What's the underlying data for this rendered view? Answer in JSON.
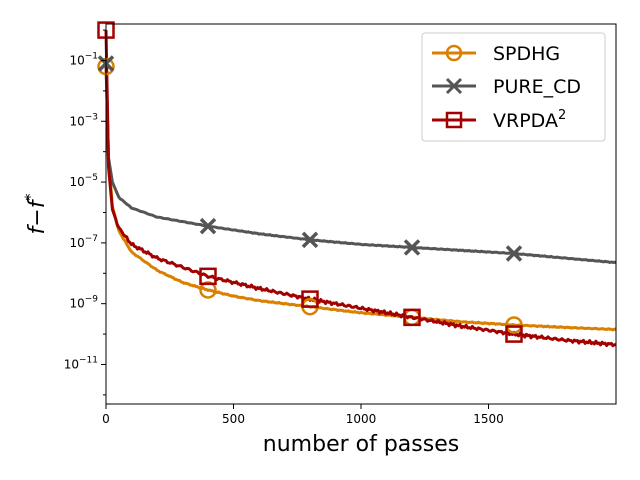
{
  "chart_data": {
    "type": "line",
    "title": "",
    "xlabel": "number of passes",
    "ylabel_main": "f",
    "ylabel_minus": "−",
    "ylabel_sup_base": "f",
    "ylabel_sup": "*",
    "xlim": [
      0,
      2000
    ],
    "ylim_log10": [
      -12.3,
      0.2
    ],
    "x_ticks": [
      0,
      500,
      1000,
      1500
    ],
    "x_tick_labels": [
      "0",
      "500",
      "1000",
      "1500"
    ],
    "y_ticks_log10": [
      -1,
      -3,
      -5,
      -7,
      -9,
      -11
    ],
    "y_tick_labels": [
      {
        "base": "10",
        "exp": "−1"
      },
      {
        "base": "10",
        "exp": "−3"
      },
      {
        "base": "10",
        "exp": "−5"
      },
      {
        "base": "10",
        "exp": "−7"
      },
      {
        "base": "10",
        "exp": "−9"
      },
      {
        "base": "10",
        "exp": "−11"
      }
    ],
    "grid": false,
    "legend_position": "top-right",
    "series": [
      {
        "name": "SPDHG",
        "legend_label": "SPDHG",
        "color": "#d98000",
        "marker": "circle",
        "x": [
          0,
          10,
          25,
          50,
          100,
          200,
          300,
          400,
          500,
          600,
          800,
          1000,
          1200,
          1400,
          1600,
          1800,
          2000
        ],
        "log10_y": [
          -1.2,
          -4.2,
          -5.8,
          -6.6,
          -7.3,
          -7.9,
          -8.3,
          -8.55,
          -8.75,
          -8.9,
          -9.1,
          -9.3,
          -9.45,
          -9.6,
          -9.7,
          -9.78,
          -9.85
        ],
        "marker_x": [
          0,
          400,
          800,
          1200,
          1600
        ],
        "marker_log10_y": [
          -1.2,
          -8.55,
          -9.1,
          -9.45,
          -9.7
        ]
      },
      {
        "name": "PURE_CD",
        "legend_label": "PURE_CD",
        "color": "#555555",
        "marker": "x",
        "x": [
          0,
          10,
          25,
          50,
          100,
          200,
          300,
          400,
          600,
          800,
          1000,
          1200,
          1400,
          1600,
          1800,
          2000
        ],
        "log10_y": [
          -1.1,
          -4.2,
          -5.0,
          -5.5,
          -5.85,
          -6.15,
          -6.3,
          -6.45,
          -6.7,
          -6.9,
          -7.05,
          -7.15,
          -7.25,
          -7.35,
          -7.5,
          -7.65
        ],
        "marker_x": [
          0,
          400,
          800,
          1200,
          1600
        ],
        "marker_log10_y": [
          -1.1,
          -6.45,
          -6.9,
          -7.15,
          -7.35
        ]
      },
      {
        "name": "VRPDA2",
        "legend_label": "VRPDA",
        "legend_sup": "2",
        "color": "#a30000",
        "marker": "square",
        "x": [
          0,
          10,
          25,
          50,
          100,
          200,
          300,
          400,
          500,
          600,
          800,
          1000,
          1200,
          1400,
          1600,
          1800,
          2000
        ],
        "log10_y": [
          0.0,
          -4.5,
          -5.9,
          -6.5,
          -7.05,
          -7.5,
          -7.8,
          -8.1,
          -8.3,
          -8.5,
          -8.85,
          -9.15,
          -9.45,
          -9.75,
          -10.0,
          -10.2,
          -10.35
        ],
        "marker_x": [
          0,
          400,
          800,
          1200,
          1600
        ],
        "marker_log10_y": [
          0.0,
          -8.1,
          -8.85,
          -9.45,
          -10.0
        ]
      }
    ]
  }
}
